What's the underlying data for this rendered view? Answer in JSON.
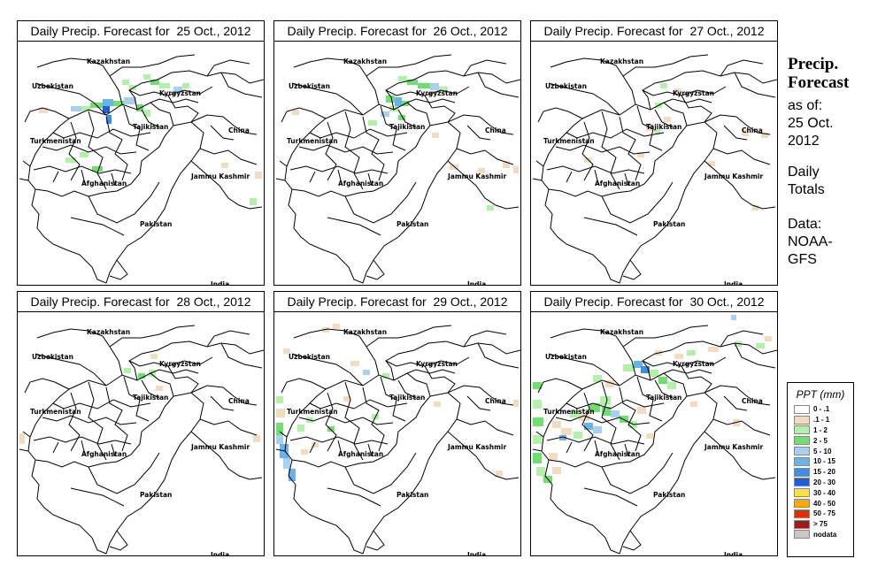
{
  "panels": [
    {
      "title": "Daily Precip. Forecast for  25 Oct., 2012"
    },
    {
      "title": "Daily Precip. Forecast for  26 Oct., 2012"
    },
    {
      "title": "Daily Precip. Forecast for  27 Oct., 2012"
    },
    {
      "title": "Daily Precip. Forecast for  28 Oct., 2012"
    },
    {
      "title": "Daily Precip. Forecast for  29 Oct., 2012"
    },
    {
      "title": "Daily Precip. Forecast for  30 Oct., 2012"
    }
  ],
  "map_labels": [
    "Kazakhstan",
    "Uzbekistan",
    "Kyrgyzstan",
    "Tajikistan",
    "Turkmenistan",
    "China",
    "Afghanistan",
    "Jammu Kashmir",
    "Pakistan",
    "India"
  ],
  "side": {
    "title_line1": "Precip.",
    "title_line2": "Forecast",
    "asof_line1": "as of:",
    "asof_line2": "25 Oct.",
    "asof_line3": "2012",
    "totals_line1": "Daily",
    "totals_line2": "Totals",
    "data_line1": "Data:",
    "data_line2": "NOAA-",
    "data_line3": "GFS"
  },
  "legend": {
    "title": "PPT (mm)",
    "items": [
      {
        "label": "0 - .1",
        "color": "#ffffff"
      },
      {
        "label": ".1 - 1",
        "color": "#f2dcc0"
      },
      {
        "label": "1 - 2",
        "color": "#b2f2a8"
      },
      {
        "label": "2 - 5",
        "color": "#6fe06f"
      },
      {
        "label": "5 - 10",
        "color": "#a8d0f0"
      },
      {
        "label": "10 - 15",
        "color": "#6ab2ec"
      },
      {
        "label": "15 - 20",
        "color": "#3c8ee6"
      },
      {
        "label": "20 - 30",
        "color": "#1e5ed8"
      },
      {
        "label": "30 - 40",
        "color": "#ffe040"
      },
      {
        "label": "40 - 50",
        "color": "#ffa800"
      },
      {
        "label": "50 - 75",
        "color": "#e03000"
      },
      {
        "label": "> 75",
        "color": "#a01818"
      },
      {
        "label": "nodata",
        "color": "#c8c8c8"
      }
    ]
  }
}
